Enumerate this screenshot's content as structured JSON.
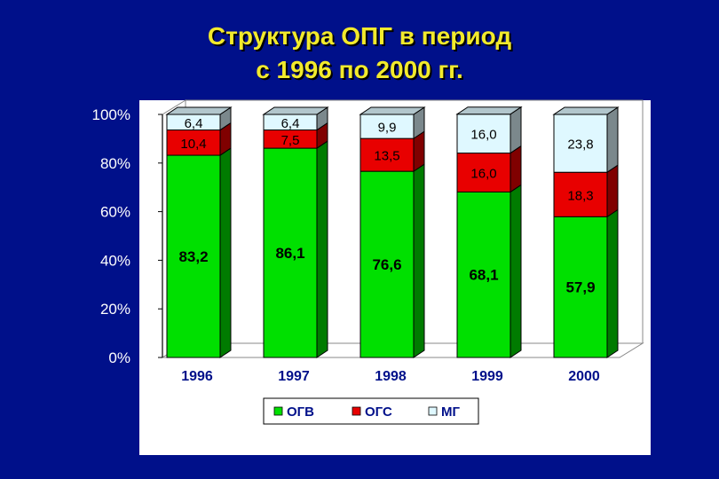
{
  "title_line1": "Структура ОПГ в период",
  "title_line2": "с 1996 по 2000 гг.",
  "chart_data": {
    "type": "bar",
    "stacked": true,
    "percent": true,
    "categories": [
      "1996",
      "1997",
      "1998",
      "1999",
      "2000"
    ],
    "series": [
      {
        "name": "ОГВ",
        "color": "#00e000",
        "values": [
          83.2,
          86.1,
          76.6,
          68.1,
          57.9
        ],
        "labels": [
          "83,2",
          "86,1",
          "76,6",
          "68,1",
          "57,9"
        ]
      },
      {
        "name": "ОГС",
        "color": "#e80000",
        "values": [
          10.4,
          7.5,
          13.5,
          16.0,
          18.3
        ],
        "labels": [
          "10,4",
          "7,5",
          "13,5",
          "16,0",
          "18,3"
        ]
      },
      {
        "name": "МГ",
        "color": "#dff8ff",
        "values": [
          6.4,
          6.4,
          9.9,
          16.0,
          23.8
        ],
        "labels": [
          "6,4",
          "6,4",
          "9,9",
          "16,0",
          "23,8"
        ]
      }
    ],
    "y_ticks": [
      "0%",
      "20%",
      "40%",
      "60%",
      "80%",
      "100%"
    ],
    "ylim": [
      0,
      100
    ],
    "legend_position": "bottom",
    "plot_background": "#ffffff",
    "page_background": "#00108a",
    "title_color": "#f2ea2c"
  }
}
